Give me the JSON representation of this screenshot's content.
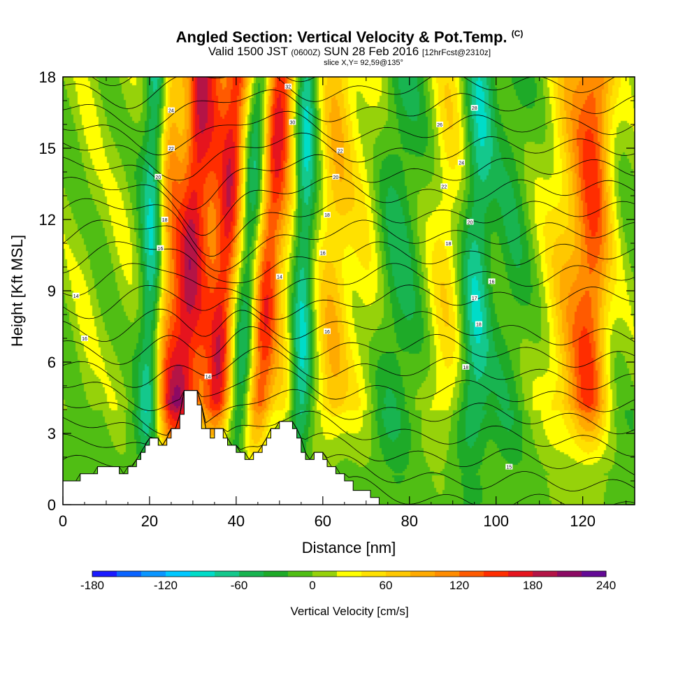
{
  "chart_data": {
    "type": "heatmap",
    "title": "Angled Section: Vertical Velocity & Pot.Temp.",
    "title_tag": "(C)",
    "subtitle_main": "Valid 1500 JST",
    "subtitle_z": "(0600Z)",
    "subtitle_date": "SUN 28 Feb 2016",
    "subtitle_fcst": "[12hrFcst@2310z]",
    "slice_text": "slice X,Y= 92,59@135°",
    "xlabel": "Distance [nm]",
    "ylabel": "Height [Kft MSL]",
    "xlim": [
      0,
      132
    ],
    "ylim": [
      0,
      18
    ],
    "xticks": [
      "0",
      "20",
      "40",
      "60",
      "80",
      "100",
      "120"
    ],
    "yticks": [
      "0",
      "3",
      "6",
      "9",
      "12",
      "15",
      "18"
    ],
    "colorbar": {
      "label": "Vertical Velocity [cm/s]",
      "ticks": [
        "-180",
        "-120",
        "-60",
        "0",
        "60",
        "120",
        "180",
        "240"
      ],
      "min": -180,
      "max": 240,
      "step": 20,
      "colors": [
        "#1a1aff",
        "#0a64ff",
        "#0a96ff",
        "#00c8ff",
        "#00dcc8",
        "#14c88c",
        "#18b450",
        "#1eaa28",
        "#50be14",
        "#96d20a",
        "#ffff00",
        "#ffe100",
        "#ffc800",
        "#ffaa00",
        "#ff8c00",
        "#ff5a00",
        "#ff2d00",
        "#e6141e",
        "#b41446",
        "#8c0a64",
        "#640a96"
      ]
    },
    "velocity_bands": [
      {
        "x": 5,
        "w": 3,
        "v": 10
      },
      {
        "x": 13,
        "w": 3,
        "v": 10
      },
      {
        "x": 20,
        "w": 2.5,
        "v": -80
      },
      {
        "x": 24,
        "w": 3,
        "v": 90
      },
      {
        "x": 28,
        "w": 3.5,
        "v": 170
      },
      {
        "x": 32,
        "w": 2.5,
        "v": 60
      },
      {
        "x": 36,
        "w": 3,
        "v": 160
      },
      {
        "x": 41.5,
        "w": 2.2,
        "v": -60
      },
      {
        "x": 46,
        "w": 3,
        "v": 140
      },
      {
        "x": 51,
        "w": 3,
        "v": 40
      },
      {
        "x": 55,
        "w": 2.5,
        "v": -80
      },
      {
        "x": 62,
        "w": 4,
        "v": 70
      },
      {
        "x": 69,
        "w": 4,
        "v": 30
      },
      {
        "x": 77,
        "w": 5,
        "v": -40
      },
      {
        "x": 88,
        "w": 4,
        "v": 45
      },
      {
        "x": 95,
        "w": 3.5,
        "v": -70
      },
      {
        "x": 103,
        "w": 4,
        "v": -30
      },
      {
        "x": 117,
        "w": 6,
        "v": 70
      },
      {
        "x": 122,
        "w": 4,
        "v": 100
      }
    ],
    "terrain_kft": [
      [
        0,
        1
      ],
      [
        4,
        1
      ],
      [
        4,
        1.3
      ],
      [
        8,
        1.3
      ],
      [
        8,
        1.6
      ],
      [
        13,
        1.6
      ],
      [
        13,
        1.3
      ],
      [
        15,
        1.3
      ],
      [
        15,
        1.6
      ],
      [
        17,
        1.6
      ],
      [
        17,
        1.9
      ],
      [
        18,
        1.9
      ],
      [
        18,
        2.2
      ],
      [
        19,
        2.2
      ],
      [
        19,
        2.5
      ],
      [
        20,
        2.5
      ],
      [
        20,
        2.8
      ],
      [
        22,
        2.8
      ],
      [
        22,
        2.5
      ],
      [
        24,
        2.5
      ],
      [
        24,
        2.8
      ],
      [
        25,
        2.8
      ],
      [
        25,
        3.2
      ],
      [
        27,
        3.2
      ],
      [
        27,
        3.8
      ],
      [
        28,
        3.8
      ],
      [
        28,
        4.8
      ],
      [
        31,
        4.8
      ],
      [
        31,
        4.2
      ],
      [
        32,
        4.2
      ],
      [
        32,
        3.2
      ],
      [
        34,
        3.2
      ],
      [
        34,
        2.8
      ],
      [
        35,
        2.8
      ],
      [
        35,
        3.2
      ],
      [
        37,
        3.2
      ],
      [
        37,
        2.8
      ],
      [
        38,
        2.8
      ],
      [
        38,
        2.5
      ],
      [
        40,
        2.5
      ],
      [
        40,
        2.2
      ],
      [
        42,
        2.2
      ],
      [
        42,
        1.9
      ],
      [
        44,
        1.9
      ],
      [
        44,
        2.2
      ],
      [
        46,
        2.2
      ],
      [
        46,
        2.5
      ],
      [
        47,
        2.5
      ],
      [
        47,
        2.8
      ],
      [
        48,
        2.8
      ],
      [
        48,
        3.2
      ],
      [
        50,
        3.2
      ],
      [
        50,
        3.5
      ],
      [
        53,
        3.5
      ],
      [
        53,
        3.2
      ],
      [
        54,
        3.2
      ],
      [
        54,
        2.8
      ],
      [
        55,
        2.8
      ],
      [
        55,
        2.2
      ],
      [
        56,
        2.2
      ],
      [
        56,
        1.9
      ],
      [
        58,
        1.9
      ],
      [
        58,
        2.2
      ],
      [
        60,
        2.2
      ],
      [
        60,
        1.9
      ],
      [
        61,
        1.9
      ],
      [
        61,
        1.6
      ],
      [
        63,
        1.6
      ],
      [
        63,
        1.3
      ],
      [
        65,
        1.3
      ],
      [
        65,
        1
      ],
      [
        67,
        1
      ],
      [
        67,
        0.6
      ],
      [
        71,
        0.6
      ],
      [
        71,
        0.3
      ],
      [
        73,
        0.3
      ],
      [
        73,
        0
      ],
      [
        0,
        0
      ]
    ],
    "theta_levels": [
      10,
      12,
      14,
      16,
      18,
      20,
      22,
      24,
      26,
      28,
      30,
      32,
      34,
      36,
      38,
      40,
      42,
      44,
      46,
      48,
      50
    ],
    "theta_labels": [
      {
        "text": "14",
        "x": 3,
        "y": 8.8
      },
      {
        "text": "16",
        "x": 5,
        "y": 7.0
      },
      {
        "text": "14",
        "x": 33.5,
        "y": 5.4
      },
      {
        "text": "16",
        "x": 22.5,
        "y": 10.8
      },
      {
        "text": "18",
        "x": 23.5,
        "y": 12.0
      },
      {
        "text": "20",
        "x": 22,
        "y": 13.8
      },
      {
        "text": "22",
        "x": 25,
        "y": 15.0
      },
      {
        "text": "24",
        "x": 25,
        "y": 16.6
      },
      {
        "text": "32",
        "x": 52,
        "y": 17.6
      },
      {
        "text": "30",
        "x": 53,
        "y": 16.1
      },
      {
        "text": "14",
        "x": 50,
        "y": 9.6
      },
      {
        "text": "16",
        "x": 60,
        "y": 10.6
      },
      {
        "text": "18",
        "x": 61,
        "y": 12.2
      },
      {
        "text": "20",
        "x": 63,
        "y": 13.8
      },
      {
        "text": "22",
        "x": 64,
        "y": 14.9
      },
      {
        "text": "16",
        "x": 61,
        "y": 7.3
      },
      {
        "text": "18",
        "x": 93,
        "y": 5.8
      },
      {
        "text": "15",
        "x": 103,
        "y": 1.6
      },
      {
        "text": "18",
        "x": 89,
        "y": 11.0
      },
      {
        "text": "20",
        "x": 94,
        "y": 11.9
      },
      {
        "text": "22",
        "x": 88,
        "y": 13.4
      },
      {
        "text": "24",
        "x": 92,
        "y": 14.4
      },
      {
        "text": "26",
        "x": 87,
        "y": 16.0
      },
      {
        "text": "28",
        "x": 95,
        "y": 16.7
      },
      {
        "text": "16",
        "x": 99,
        "y": 9.4
      },
      {
        "text": "17",
        "x": 95,
        "y": 8.7
      },
      {
        "text": "18",
        "x": 96,
        "y": 7.6
      }
    ]
  }
}
